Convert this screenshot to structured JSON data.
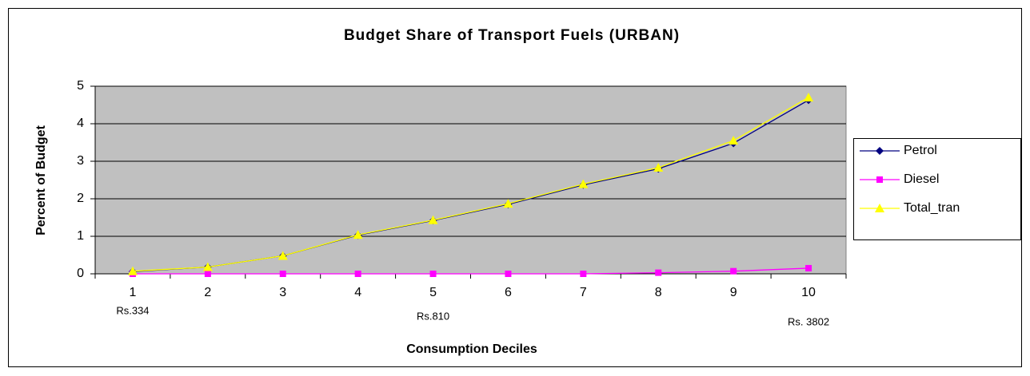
{
  "chart_data": {
    "type": "line",
    "title": "Budget Share of Transport Fuels (URBAN)",
    "x_label": "Consumption Deciles",
    "y_label": "Percent of Budget",
    "categories": [
      "1",
      "2",
      "3",
      "4",
      "5",
      "6",
      "7",
      "8",
      "9",
      "10"
    ],
    "category_sublabels": [
      "Rs.334",
      null,
      null,
      null,
      "Rs.810",
      null,
      null,
      null,
      null,
      "Rs. 3802"
    ],
    "series": [
      {
        "name": "Petrol",
        "color": "#000080",
        "marker": "diamond",
        "values": [
          0.06,
          0.18,
          0.48,
          1.03,
          1.42,
          1.85,
          2.37,
          2.8,
          3.48,
          4.63
        ]
      },
      {
        "name": "Diesel",
        "color": "#ff00ff",
        "marker": "square",
        "values": [
          0,
          0,
          0,
          0,
          0,
          0,
          0,
          0.03,
          0.07,
          0.15
        ]
      },
      {
        "name": "Total_tran",
        "color": "#ffff00",
        "marker": "triangle",
        "values": [
          0.07,
          0.18,
          0.48,
          1.04,
          1.43,
          1.87,
          2.39,
          2.83,
          3.55,
          4.7
        ]
      }
    ],
    "ylim": [
      0,
      5
    ],
    "yticks": [
      0,
      1,
      2,
      3,
      4,
      5
    ],
    "grid": true,
    "legend": "right",
    "plot_background": "#c0c0c0"
  }
}
